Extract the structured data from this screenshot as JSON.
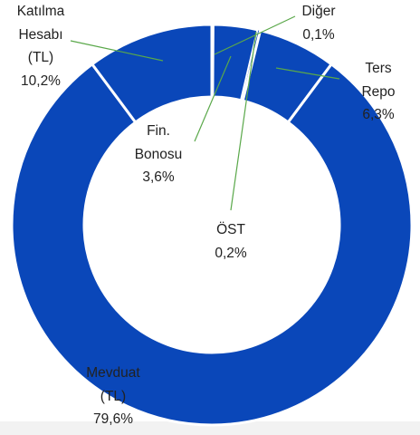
{
  "chart_data": {
    "type": "pie",
    "donut": true,
    "categories": [
      "Diğer",
      "Fin.\nBonosu",
      "ÖST",
      "Ters Repo",
      "Mevduat\n(TL)",
      "Katılma\nHesabı\n(TL)"
    ],
    "values": [
      0.1,
      3.6,
      0.2,
      6.3,
      79.6,
      10.2
    ],
    "value_labels": [
      "0,1%",
      "3,6%",
      "0,2%",
      "6,3%",
      "79,6%",
      "10,2%"
    ],
    "color": "#0a47b9"
  }
}
